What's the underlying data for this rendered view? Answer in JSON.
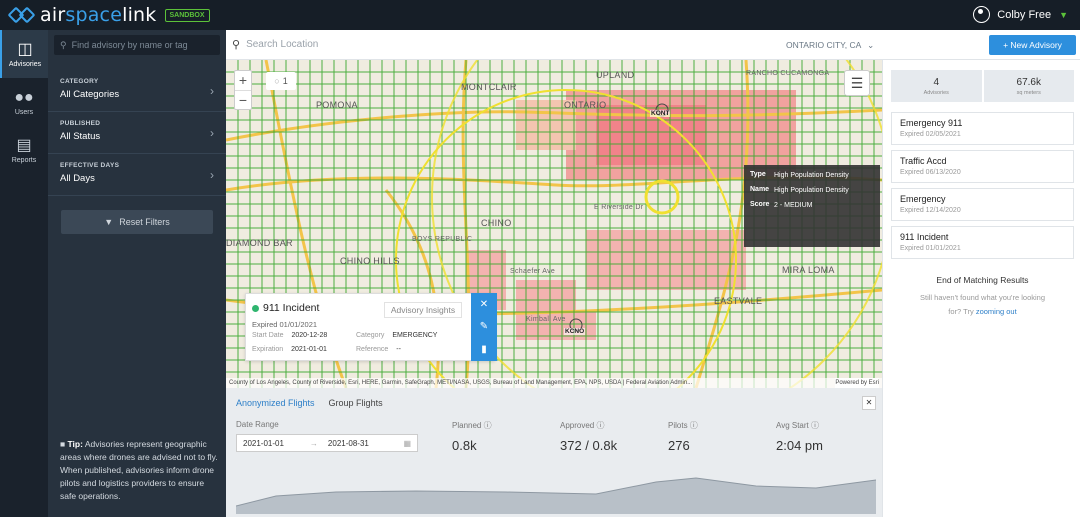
{
  "app": {
    "brand_prefix": "air",
    "brand_highlight": "space",
    "brand_suffix": "link",
    "env_badge": "SANDBOX",
    "user_name": "Colby Free"
  },
  "nav": [
    {
      "label": "Advisories",
      "icon": "advisories-icon",
      "active": true
    },
    {
      "label": "Users",
      "icon": "users-icon",
      "active": false
    },
    {
      "label": "Reports",
      "icon": "reports-icon",
      "active": false
    }
  ],
  "filters": {
    "search_placeholder": "Find advisory by name or tag",
    "groups": [
      {
        "label": "CATEGORY",
        "value": "All Categories"
      },
      {
        "label": "PUBLISHED",
        "value": "All Status"
      },
      {
        "label": "EFFECTIVE DAYS",
        "value": "All Days"
      }
    ],
    "reset_label": "Reset Filters",
    "tip_title": "Tip:",
    "tip_text": "Advisories represent geographic areas where drones are advised not to fly. When published, advisories inform drone pilots and logistics providers to ensure safe operations."
  },
  "map_header": {
    "search_placeholder": "Search Location",
    "city": "ONTARIO CITY, CA",
    "new_advisory": "+ New Advisory"
  },
  "map": {
    "count": "1",
    "labels": [
      {
        "text": "MONTCLAIR"
      },
      {
        "text": "UPLAND"
      },
      {
        "text": "RANCHO CUCAMONGA"
      },
      {
        "text": "ONTARIO"
      },
      {
        "text": "POMONA"
      },
      {
        "text": "CHINO"
      },
      {
        "text": "CHINO HILLS"
      },
      {
        "text": "MIRA LOMA"
      },
      {
        "text": "EASTVALE"
      },
      {
        "text": "DIAMOND BAR"
      },
      {
        "text": "BOYS REPUBLIC"
      },
      {
        "text": "E Riverside Dr"
      },
      {
        "text": "Schaefer Ave"
      },
      {
        "text": "Kimball Ave"
      }
    ],
    "airports": [
      "KONT",
      "KCNO"
    ],
    "attribution": "County of Los Angeles, County of Riverside, Esri, HERE, Garmin, SafeGraph, METI/NASA, USGS, Bureau of Land Management, EPA, NPS, USDA | Federal Aviation Admin...",
    "attribution_right": "Powered by Esri",
    "tooltip": [
      {
        "key": "Type",
        "value": "High Population Density"
      },
      {
        "key": "Name",
        "value": "High Population Density"
      },
      {
        "key": "Score",
        "value": "2 - MEDIUM"
      }
    ]
  },
  "popup": {
    "title": "911 Incident",
    "expired": "Expired 01/01/2021",
    "insights_label": "Advisory Insights",
    "start_label": "Start Date",
    "start_value": "2020-12-28",
    "exp_label": "Expiration",
    "exp_value": "2021-01-01",
    "cat_label": "Category",
    "cat_value": "EMERGENCY",
    "ref_label": "Reference",
    "ref_value": "--"
  },
  "flights": {
    "tabs": [
      "Anonymized Flights",
      "Group Flights"
    ],
    "date_label": "Date Range",
    "date_from": "2021-01-01",
    "date_to": "2021-08-31",
    "metrics": [
      {
        "label": "Planned",
        "value": "0.8k"
      },
      {
        "label": "Approved",
        "value": "372 / 0.8k"
      },
      {
        "label": "Pilots",
        "value": "276"
      },
      {
        "label": "Avg Start",
        "value": "2:04 pm"
      }
    ]
  },
  "results": {
    "stat1_num": "4",
    "stat1_lbl": "Advisories",
    "stat2_num": "67.6k",
    "stat2_lbl": "sq meters",
    "advisories": [
      {
        "name": "Emergency 911",
        "expired": "Expired 02/05/2021"
      },
      {
        "name": "Traffic Accd",
        "expired": "Expired 06/13/2020"
      },
      {
        "name": "Emergency",
        "expired": "Expired 12/14/2020"
      },
      {
        "name": "911 Incident",
        "expired": "Expired 01/01/2021"
      }
    ],
    "end_title": "End of Matching Results",
    "end_sub_1": "Still haven't found what you're looking",
    "end_sub_2": "for? Try",
    "end_link": "zooming out"
  },
  "colors": {
    "accent": "#2d8fdd",
    "grid": "#3aa82e",
    "heat": "#f0788a",
    "sandbox": "#5cc23a"
  }
}
